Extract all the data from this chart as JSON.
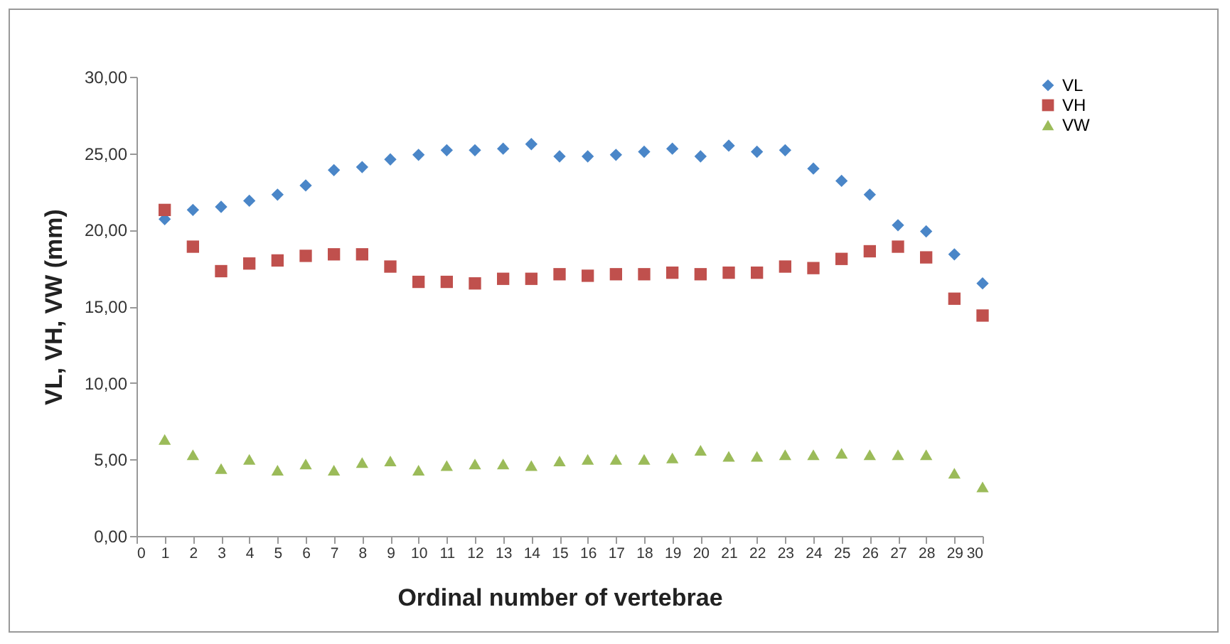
{
  "chart_data": {
    "type": "scatter",
    "xlabel": "Ordinal number of vertebrae",
    "ylabel": "VL, VH, VW (mm)",
    "x": [
      1,
      2,
      3,
      4,
      5,
      6,
      7,
      8,
      9,
      10,
      11,
      12,
      13,
      14,
      15,
      16,
      17,
      18,
      19,
      20,
      21,
      22,
      23,
      24,
      25,
      26,
      27,
      28,
      29,
      30
    ],
    "series": [
      {
        "name": "VL",
        "color": "#4a86c8",
        "marker": "diamond",
        "values": [
          20.7,
          21.3,
          21.5,
          21.9,
          22.3,
          22.9,
          23.9,
          24.1,
          24.6,
          24.9,
          25.2,
          25.2,
          25.3,
          25.6,
          24.8,
          24.8,
          24.9,
          25.1,
          25.3,
          24.8,
          25.5,
          25.1,
          25.2,
          24.0,
          23.2,
          22.3,
          20.3,
          19.9,
          18.4,
          16.5
        ]
      },
      {
        "name": "VH",
        "color": "#c0504d",
        "marker": "square",
        "values": [
          21.3,
          18.9,
          17.3,
          17.8,
          18.0,
          18.3,
          18.4,
          18.4,
          17.6,
          16.6,
          16.6,
          16.5,
          16.8,
          16.8,
          17.1,
          17.0,
          17.1,
          17.1,
          17.2,
          17.1,
          17.2,
          17.2,
          17.6,
          17.5,
          18.1,
          18.6,
          18.9,
          18.2,
          15.5,
          14.4
        ]
      },
      {
        "name": "VW",
        "color": "#9bbb59",
        "marker": "triangle",
        "values": [
          6.3,
          5.3,
          4.4,
          5.0,
          4.3,
          4.7,
          4.3,
          4.8,
          4.9,
          4.3,
          4.6,
          4.7,
          4.7,
          4.6,
          4.9,
          5.0,
          5.0,
          5.0,
          5.1,
          5.6,
          5.2,
          5.2,
          5.3,
          5.3,
          5.4,
          5.3,
          5.3,
          5.3,
          4.1,
          3.2
        ]
      }
    ],
    "xlim": [
      0,
      30
    ],
    "xticks": [
      0,
      1,
      2,
      3,
      4,
      5,
      6,
      7,
      8,
      9,
      10,
      11,
      12,
      13,
      14,
      15,
      16,
      17,
      18,
      19,
      20,
      21,
      22,
      23,
      24,
      25,
      26,
      27,
      28,
      29,
      30
    ],
    "ylim": [
      0,
      30
    ],
    "yticks": [
      {
        "value": 0,
        "label": "0,00"
      },
      {
        "value": 5,
        "label": "5,00"
      },
      {
        "value": 10,
        "label": "10,00"
      },
      {
        "value": 15,
        "label": "15,00"
      },
      {
        "value": 20,
        "label": "20,00"
      },
      {
        "value": 25,
        "label": "25,00"
      },
      {
        "value": 30,
        "label": "30,00"
      }
    ],
    "grid": false,
    "legend": "top right"
  }
}
